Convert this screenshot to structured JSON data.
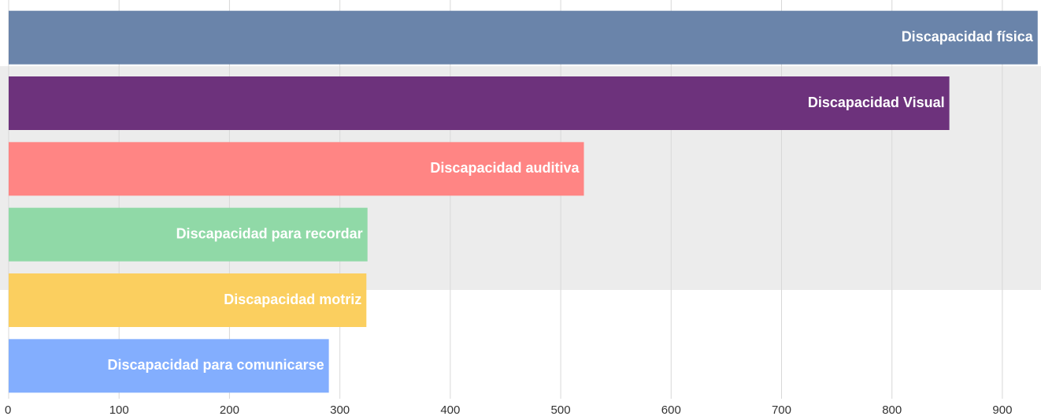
{
  "chart_data": {
    "type": "barh",
    "categories": [
      "Discapacidad física",
      "Discapacidad Visual",
      "Discapacidad auditiva",
      "Discapacidad para recordar",
      "Discapacidad motriz",
      "Discapacidad para comunicarse"
    ],
    "values": [
      932,
      852,
      521,
      325,
      324,
      290
    ],
    "colors": [
      "#6a84aa",
      "#6d327c",
      "#ff8584",
      "#90d9a7",
      "#fbcf5f",
      "#83aefe"
    ],
    "xlim": [
      0,
      935
    ],
    "xticks": [
      0,
      100,
      200,
      300,
      400,
      500,
      600,
      700,
      800,
      900
    ],
    "grid": true
  }
}
